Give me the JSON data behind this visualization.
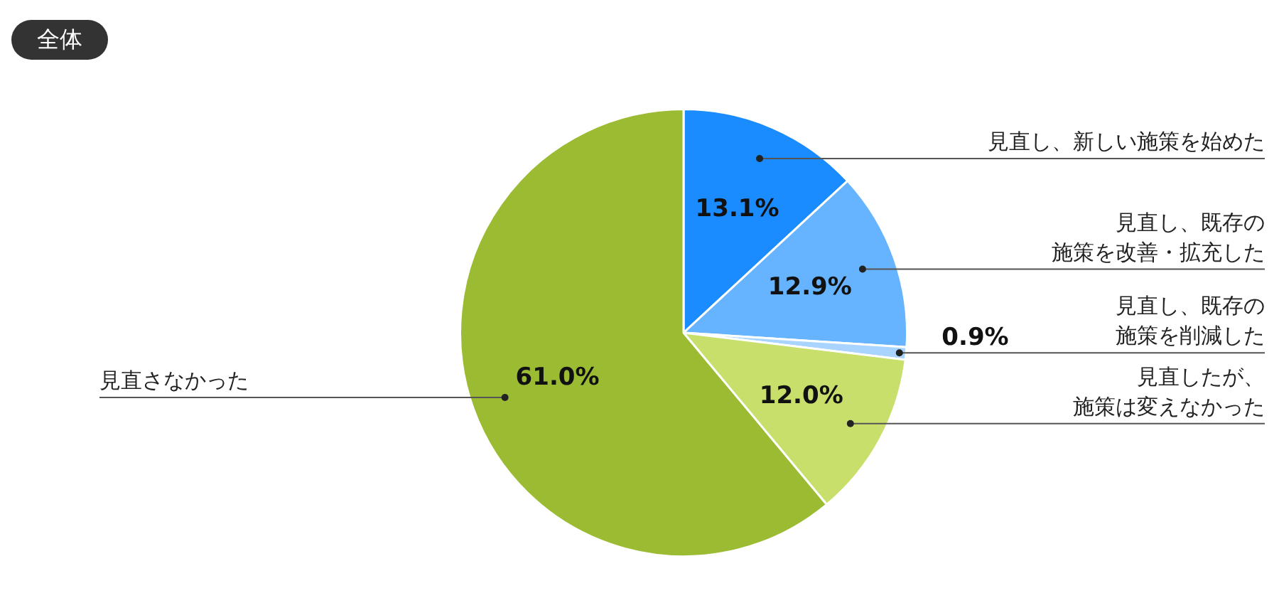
{
  "chart_data": {
    "type": "pie",
    "title": "全体",
    "categories": [
      "見直し、新しい施策を始めた",
      "見直し、既存の施策を改善・拡充した",
      "見直し、既存の施策を削減した",
      "見直したが、施策は変えなかった",
      "見直さなかった"
    ],
    "values": [
      13.1,
      12.9,
      0.9,
      12.0,
      61.0
    ],
    "colors": [
      "#1a8cff",
      "#66b3ff",
      "#a9d4ff",
      "#c8e06b",
      "#9bbc32"
    ],
    "value_labels": [
      "13.1%",
      "12.9%",
      "0.9%",
      "12.0%",
      "61.0%"
    ],
    "legend": false
  }
}
